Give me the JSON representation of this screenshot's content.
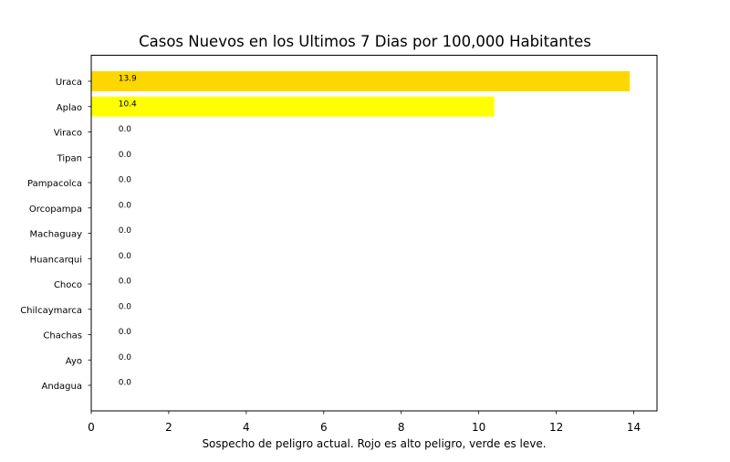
{
  "chart_data": {
    "type": "bar",
    "orientation": "horizontal",
    "title": "Casos Nuevos en los Ultimos 7 Dias por 100,000 Habitantes",
    "xlabel": "Sospecho de peligro actual. Rojo es alto peligro, verde es leve.",
    "ylabel": "",
    "categories": [
      "Uraca",
      "Aplao",
      "Viraco",
      "Tipan",
      "Pampacolca",
      "Orcopampa",
      "Machaguay",
      "Huancarqui",
      "Choco",
      "Chilcaymarca",
      "Chachas",
      "Ayo",
      "Andagua"
    ],
    "values": [
      13.9,
      10.4,
      0.0,
      0.0,
      0.0,
      0.0,
      0.0,
      0.0,
      0.0,
      0.0,
      0.0,
      0.0,
      0.0
    ],
    "value_labels": [
      "13.9",
      "10.4",
      "0.0",
      "0.0",
      "0.0",
      "0.0",
      "0.0",
      "0.0",
      "0.0",
      "0.0",
      "0.0",
      "0.0",
      "0.0"
    ],
    "bar_colors": [
      "#ffd700",
      "#ffff00",
      "#ffffff",
      "#ffffff",
      "#ffffff",
      "#ffffff",
      "#ffffff",
      "#ffffff",
      "#ffffff",
      "#ffffff",
      "#ffffff",
      "#ffffff",
      "#ffffff"
    ],
    "xticks": [
      0,
      2,
      4,
      6,
      8,
      10,
      12,
      14
    ],
    "xtick_labels": [
      "0",
      "2",
      "4",
      "6",
      "8",
      "10",
      "12",
      "14"
    ],
    "xlim": [
      0,
      14.6
    ],
    "label_x_value": 0.7,
    "grid": false,
    "legend": "none"
  }
}
